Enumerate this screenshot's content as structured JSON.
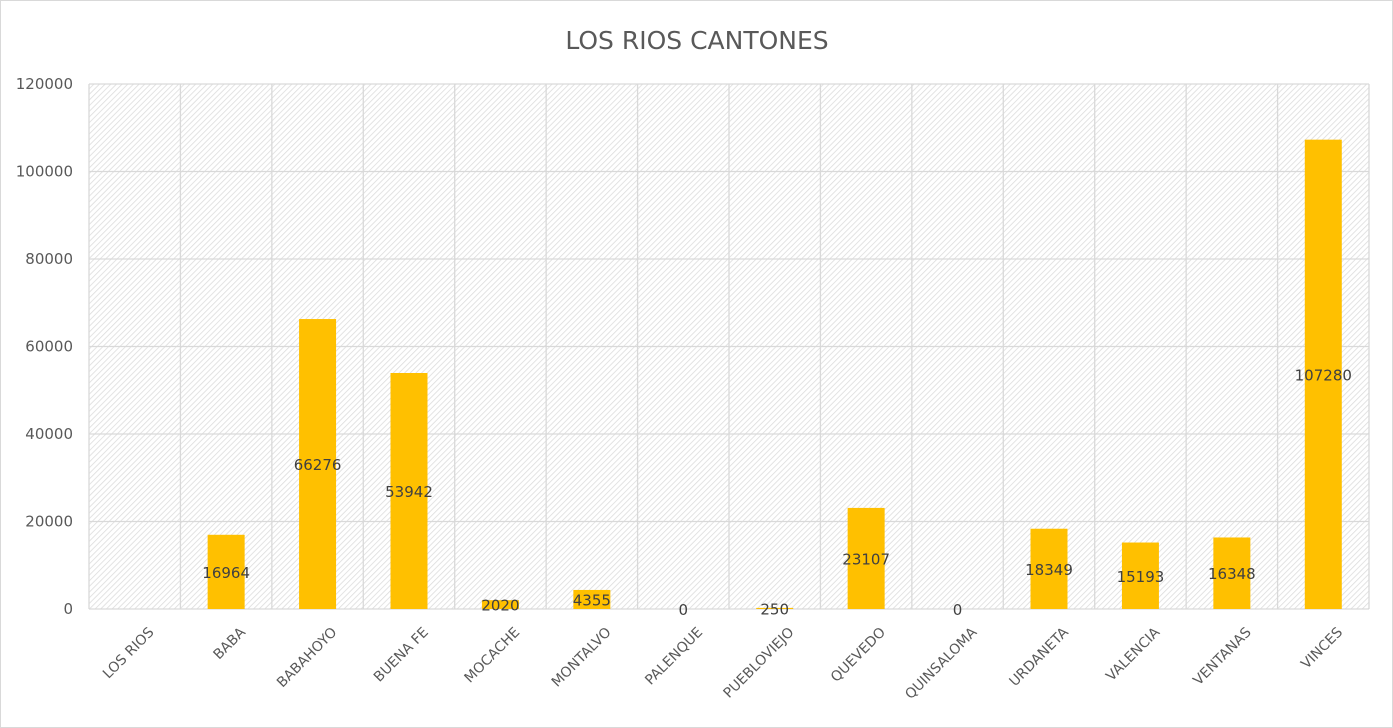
{
  "chart_data": {
    "type": "bar",
    "title": "LOS RIOS CANTONES",
    "categories": [
      "LOS RIOS",
      "BABA",
      "BABAHOYO",
      "BUENA FE",
      "MOCACHE",
      "MONTALVO",
      "PALENQUE",
      "PUEBLOVIEJO",
      "QUEVEDO",
      "QUINSALOMA",
      "URDANETA",
      "VALENCIA",
      "VENTANAS",
      "VINCES"
    ],
    "values": [
      null,
      16964,
      66276,
      53942,
      2020,
      4355,
      0,
      250,
      23107,
      0,
      18349,
      15193,
      16348,
      107280
    ],
    "data_labels": [
      "",
      "16964",
      "66276",
      "53942",
      "2020",
      "4355",
      "0",
      "250",
      "23107",
      "0",
      "18349",
      "15193",
      "16348",
      "107280"
    ],
    "ylim": [
      0,
      120000
    ],
    "yticks": [
      0,
      20000,
      40000,
      60000,
      80000,
      100000,
      120000
    ],
    "xlabel": "",
    "ylabel": "",
    "grid": true,
    "legend": "none",
    "colors": {
      "bar": "#FFC000",
      "grid": "#d9d9d9",
      "text": "#595959",
      "label": "#404040"
    }
  }
}
